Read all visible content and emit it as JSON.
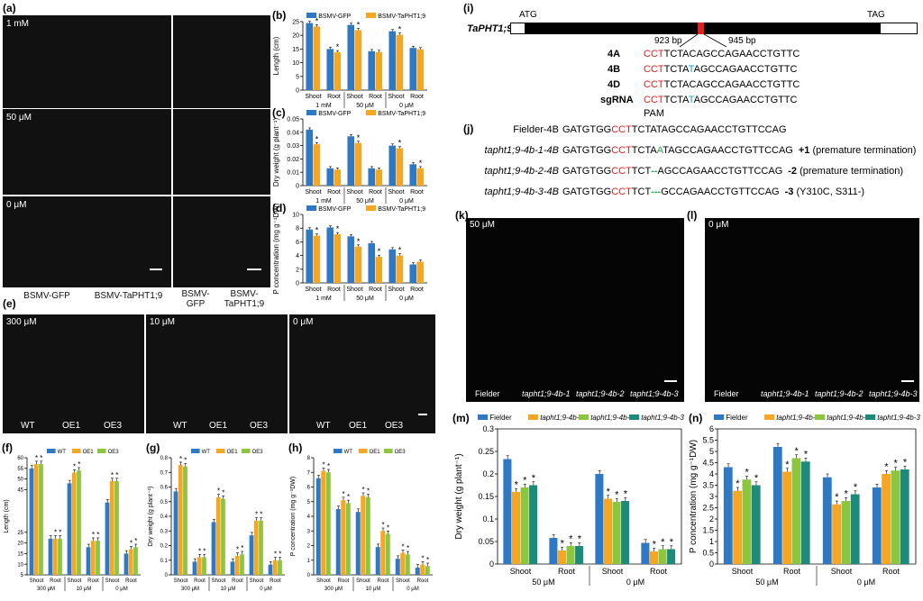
{
  "panels": {
    "a": {
      "label": "(a)",
      "conditions": [
        "1 mM",
        "50 μM",
        "0 μM"
      ],
      "captions": [
        "BSMV-GFP",
        "BSMV-TaPHT1;9",
        "BSMV-\nGFP",
        "BSMV-\nTaPHT1;9"
      ]
    },
    "e": {
      "label": "(e)",
      "conditions": [
        "300 μM",
        "10 μM",
        "0 μM"
      ],
      "groups": [
        "WT",
        "OE1",
        "OE3"
      ]
    },
    "i": {
      "label": "(i)",
      "gene": "TaPHT1;9",
      "atg": "ATG",
      "tag": "TAG",
      "pos1": "923 bp",
      "pos2": "945 bp",
      "rows": [
        {
          "name": "4A",
          "pam": "CCT",
          "a": "TCTA",
          "mut": "C",
          "b": "AGCCAGAACCTGTTC"
        },
        {
          "name": "4B",
          "pam": "CCT",
          "a": "TCTA",
          "mut": "T",
          "b": "AGCCAGAACCTGTTC"
        },
        {
          "name": "4D",
          "pam": "CCT",
          "a": "TCTA",
          "mut": "C",
          "b": "AGCCAGAACCTGTTC"
        },
        {
          "name": "sgRNA",
          "pam": "CCT",
          "a": "TCTA",
          "mut": "T",
          "b": "AGCCAGAACCTGTTC"
        }
      ],
      "pam_label": "PAM"
    },
    "j": {
      "label": "(j)",
      "rows": [
        {
          "name": "Fielder-4B",
          "seq1": "GATGTGG",
          "pam": "CCT",
          "mid": "TCTATAGCCAGAACCTGTTCCAG",
          "ins": "",
          "del": "",
          "note_num": "",
          "note": ""
        },
        {
          "name": "tapht1;9-4b-1-4B",
          "seq1": "GATGTGG",
          "pam": "CCT",
          "mid": "TCTA",
          "ins": "A",
          "rest": "TAGCCAGAACCTGTTCCAG",
          "note_num": "+1",
          "note": "(premature termination)"
        },
        {
          "name": "tapht1;9-4b-2-4B",
          "seq1": "GATGTGG",
          "pam": "CCT",
          "mid": "TCT",
          "del": "--",
          "rest": "AGCCAGAACCTGTTCCAG",
          "note_num": "-2",
          "note": "(premature termination)"
        },
        {
          "name": "tapht1;9-4b-3-4B",
          "seq1": "GATGTGG",
          "pam": "CCT",
          "mid": "TCT",
          "del": "---",
          "rest": "GCCAGAACCTGTTCCAG",
          "note_num": "-3",
          "note": "(Y310C, S311-)"
        }
      ]
    },
    "k": {
      "label": "(k)",
      "condition": "50 μM",
      "groups": [
        "Fielder",
        "tapht1;9-4b-1",
        "tapht1;9-4b-2",
        "tapht1;9-4b-3"
      ]
    },
    "l": {
      "label": "(l)",
      "condition": "0 μM",
      "groups": [
        "Fielder",
        "tapht1;9-4b-1",
        "tapht1;9-4b-2",
        "tapht1;9-4b-3"
      ]
    }
  },
  "colors": {
    "blue": "#2f78c4",
    "orange": "#f5a623",
    "green": "#8cc63f",
    "teal": "#1e8a7a",
    "pam_red": "#e02020",
    "mut_blue": "#1aa0d0",
    "ins_green": "#2aa84a"
  },
  "chart_data": [
    {
      "id": "b",
      "label": "(b)",
      "type": "bar",
      "ylabel": "Length (cm)",
      "ylim": [
        0,
        25
      ],
      "yticks": [
        0,
        5,
        10,
        15,
        20,
        25
      ],
      "categories": [
        "Shoot",
        "Root",
        "Shoot",
        "Root",
        "Shoot",
        "Root"
      ],
      "groups": [
        "1 mM",
        "50 μM",
        "0 μM"
      ],
      "series": [
        {
          "name": "BSMV-GFP",
          "values": [
            24.5,
            15.0,
            23.8,
            14.2,
            21.5,
            15.4
          ]
        },
        {
          "name": "BSMV-TaPHT1;9",
          "values": [
            23.2,
            13.8,
            21.9,
            13.9,
            20.2,
            14.9
          ]
        }
      ],
      "sig": [
        [
          false,
          false,
          false,
          false,
          false,
          false
        ],
        [
          true,
          true,
          true,
          false,
          true,
          false
        ]
      ]
    },
    {
      "id": "c",
      "label": "(c)",
      "type": "bar",
      "ylabel": "Dry weight (g plant⁻¹)",
      "ylim": [
        0,
        0.05
      ],
      "yticks": [
        0,
        0.01,
        0.02,
        0.03,
        0.04,
        0.05
      ],
      "categories": [
        "Shoot",
        "Root",
        "Shoot",
        "Root",
        "Shoot",
        "Root"
      ],
      "groups": [
        "1 mM",
        "50 μM",
        "0 μM"
      ],
      "series": [
        {
          "name": "BSMV-GFP",
          "values": [
            0.042,
            0.013,
            0.037,
            0.013,
            0.03,
            0.016
          ]
        },
        {
          "name": "BSMV-TaPHT1;9",
          "values": [
            0.031,
            0.012,
            0.032,
            0.012,
            0.028,
            0.013
          ]
        }
      ],
      "sig": [
        [
          false,
          false,
          false,
          false,
          false,
          false
        ],
        [
          true,
          false,
          true,
          false,
          true,
          true
        ]
      ]
    },
    {
      "id": "d",
      "label": "(d)",
      "type": "bar",
      "ylabel": "P concentration (mg g⁻¹DW)",
      "ylim": [
        0,
        10
      ],
      "yticks": [
        0,
        2,
        4,
        6,
        8,
        10
      ],
      "categories": [
        "Shoot",
        "Root",
        "Shoot",
        "Root",
        "Shoot",
        "Root"
      ],
      "groups": [
        "1 mM",
        "50 μM",
        "0 μM"
      ],
      "series": [
        {
          "name": "BSMV-GFP",
          "values": [
            7.8,
            8.1,
            6.8,
            5.8,
            4.9,
            2.7
          ]
        },
        {
          "name": "BSMV-TaPHT1;9",
          "values": [
            6.9,
            7.1,
            5.3,
            3.8,
            4.0,
            3.1
          ]
        }
      ],
      "sig": [
        [
          false,
          false,
          false,
          false,
          false,
          false
        ],
        [
          true,
          true,
          true,
          true,
          true,
          false
        ]
      ]
    },
    {
      "id": "f",
      "label": "(f)",
      "type": "bar",
      "ylabel": "Length (cm)",
      "ylim": [
        5,
        60
      ],
      "yticks": [
        5.0,
        10,
        15,
        20,
        25,
        45,
        50,
        55,
        60
      ],
      "categories": [
        "Shoot",
        "Root",
        "Shoot",
        "Root",
        "Shoot",
        "Root"
      ],
      "groups": [
        "300 μM",
        "10 μM",
        "0 μM"
      ],
      "series": [
        {
          "name": "WT",
          "values": [
            55,
            22,
            48,
            18,
            39,
            15
          ]
        },
        {
          "name": "OE1",
          "values": [
            57,
            22,
            53,
            21,
            49,
            17
          ]
        },
        {
          "name": "OE3",
          "values": [
            57,
            22,
            54,
            21,
            49,
            18
          ]
        }
      ]
    },
    {
      "id": "g",
      "label": "(g)",
      "type": "bar",
      "ylabel": "Dry weight (g plant⁻¹)",
      "ylim": [
        0,
        0.8
      ],
      "yticks": [
        0.0,
        0.1,
        0.2,
        0.3,
        0.4,
        0.5,
        0.6,
        0.7,
        0.8
      ],
      "categories": [
        "Shoot",
        "Root",
        "Shoot",
        "Root",
        "Shoot",
        "Root"
      ],
      "groups": [
        "300 μM",
        "10 μM",
        "0 μM"
      ],
      "series": [
        {
          "name": "WT",
          "values": [
            0.57,
            0.09,
            0.36,
            0.09,
            0.27,
            0.07
          ]
        },
        {
          "name": "OE1",
          "values": [
            0.75,
            0.12,
            0.53,
            0.13,
            0.37,
            0.1
          ]
        },
        {
          "name": "OE3",
          "values": [
            0.74,
            0.12,
            0.52,
            0.14,
            0.37,
            0.1
          ]
        }
      ]
    },
    {
      "id": "h",
      "label": "(h)",
      "type": "bar",
      "ylabel": "P concentration (mg g⁻¹DW)",
      "ylim": [
        0,
        8
      ],
      "yticks": [
        0,
        1,
        2,
        3,
        4,
        5,
        6,
        7,
        8
      ],
      "categories": [
        "Shoot",
        "Root",
        "Shoot",
        "Root",
        "Shoot",
        "Root"
      ],
      "groups": [
        "300 μM",
        "10 μM",
        "0 μM"
      ],
      "series": [
        {
          "name": "WT",
          "values": [
            6.6,
            4.5,
            4.3,
            1.9,
            1.1,
            0.5
          ]
        },
        {
          "name": "OE1",
          "values": [
            7.1,
            5.1,
            5.4,
            3.0,
            1.5,
            0.7
          ]
        },
        {
          "name": "OE3",
          "values": [
            7.0,
            4.9,
            5.3,
            2.8,
            1.4,
            0.6
          ]
        }
      ]
    },
    {
      "id": "m",
      "label": "(m)",
      "type": "bar",
      "ylabel": "Dry weight (g plant⁻¹)",
      "ylim": [
        0,
        0.3
      ],
      "yticks": [
        0,
        0.05,
        0.1,
        0.15,
        0.2,
        0.25,
        0.3
      ],
      "categories": [
        "Shoot",
        "Root",
        "Shoot",
        "Root"
      ],
      "groups": [
        "50 μM",
        "0 μM"
      ],
      "series": [
        {
          "name": "Fielder",
          "values": [
            0.233,
            0.058,
            0.2,
            0.047
          ]
        },
        {
          "name": "tapht1;9-4b-1",
          "values": [
            0.16,
            0.03,
            0.145,
            0.028
          ]
        },
        {
          "name": "tapht1;9-4b-2",
          "values": [
            0.17,
            0.04,
            0.138,
            0.033
          ]
        },
        {
          "name": "tapht1;9-4b-3",
          "values": [
            0.175,
            0.04,
            0.14,
            0.033
          ]
        }
      ]
    },
    {
      "id": "n",
      "label": "(n)",
      "type": "bar",
      "ylabel": "P concentration (mg g⁻¹DW)",
      "ylim": [
        0,
        6
      ],
      "yticks": [
        0,
        0.5,
        1.0,
        1.5,
        2.0,
        2.5,
        3.0,
        3.5,
        4.0,
        4.5,
        5.0,
        5.5,
        6.0
      ],
      "categories": [
        "Shoot",
        "Root",
        "Shoot",
        "Root"
      ],
      "groups": [
        "50 μM",
        "0 μM"
      ],
      "series": [
        {
          "name": "Fielder",
          "values": [
            4.3,
            5.2,
            3.85,
            3.4
          ]
        },
        {
          "name": "tapht1;9-4b-1",
          "values": [
            3.25,
            4.1,
            2.65,
            4.0
          ]
        },
        {
          "name": "tapht1;9-4b-2",
          "values": [
            3.75,
            4.7,
            2.8,
            4.15
          ]
        },
        {
          "name": "tapht1;9-4b-3",
          "values": [
            3.5,
            4.55,
            3.1,
            4.2
          ]
        }
      ]
    }
  ]
}
